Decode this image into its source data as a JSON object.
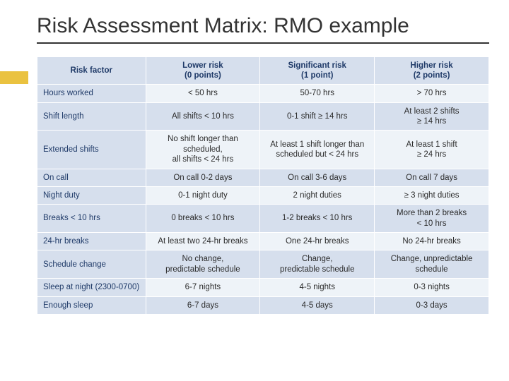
{
  "title": "Risk Assessment Matrix: RMO example",
  "colors": {
    "accent": "#eac240",
    "header_bg": "#d6dfed",
    "header_text": "#1f3a68",
    "row_odd": "#eef3f8",
    "row_even": "#d6dfed",
    "title_text": "#333333",
    "underline": "#333333"
  },
  "table": {
    "type": "table",
    "columns": [
      "Risk factor",
      "Lower risk\n(0 points)",
      "Significant risk\n(1 point)",
      "Higher risk\n(2 points)"
    ],
    "rows": [
      {
        "factor": "Hours worked",
        "c1": "< 50 hrs",
        "c2": "50-70 hrs",
        "c3": "> 70 hrs"
      },
      {
        "factor": "Shift length",
        "c1": "All shifts < 10 hrs",
        "c2": "0-1 shift ≥ 14 hrs",
        "c3": "At least 2 shifts\n≥ 14 hrs"
      },
      {
        "factor": "Extended shifts",
        "c1": "No shift longer than scheduled,\nall shifts < 24 hrs",
        "c2": "At least 1 shift longer than scheduled but < 24 hrs",
        "c3": "At least 1 shift\n≥ 24 hrs"
      },
      {
        "factor": "On call",
        "c1": "On call 0-2 days",
        "c2": "On call 3-6 days",
        "c3": "On call 7 days"
      },
      {
        "factor": "Night duty",
        "c1": "0-1 night duty",
        "c2": "2 night duties",
        "c3": "≥ 3 night duties"
      },
      {
        "factor": "Breaks < 10 hrs",
        "c1": "0 breaks < 10 hrs",
        "c2": "1-2 breaks < 10 hrs",
        "c3": "More than 2 breaks\n< 10 hrs"
      },
      {
        "factor": "24-hr breaks",
        "c1": "At least two 24-hr breaks",
        "c2": "One 24-hr breaks",
        "c3": "No 24-hr breaks"
      },
      {
        "factor": "Schedule change",
        "c1": "No change,\npredictable schedule",
        "c2": "Change,\npredictable schedule",
        "c3": "Change, unpredictable schedule"
      },
      {
        "factor": "Sleep at night (2300-0700)",
        "c1": "6-7 nights",
        "c2": "4-5 nights",
        "c3": "0-3 nights"
      },
      {
        "factor": "Enough sleep",
        "c1": "6-7 days",
        "c2": "4-5 days",
        "c3": "0-3 days"
      }
    ]
  }
}
